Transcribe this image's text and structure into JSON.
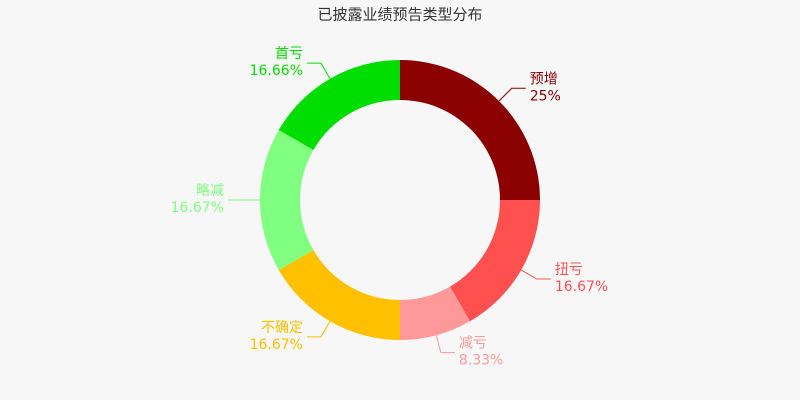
{
  "chart_data": {
    "type": "donut",
    "title": "已披露业绩预告类型分布",
    "categories": [
      "预增",
      "扭亏",
      "减亏",
      "不确定",
      "略减",
      "首亏"
    ],
    "values": [
      25,
      16.67,
      8.33,
      16.67,
      16.67,
      16.66
    ],
    "value_labels": [
      "25%",
      "16.67%",
      "8.33%",
      "16.67%",
      "16.67%",
      "16.66%"
    ],
    "colors": [
      "#8b0000",
      "#ff5050",
      "#ff9999",
      "#ffc000",
      "#80ff80",
      "#00dd00"
    ]
  }
}
